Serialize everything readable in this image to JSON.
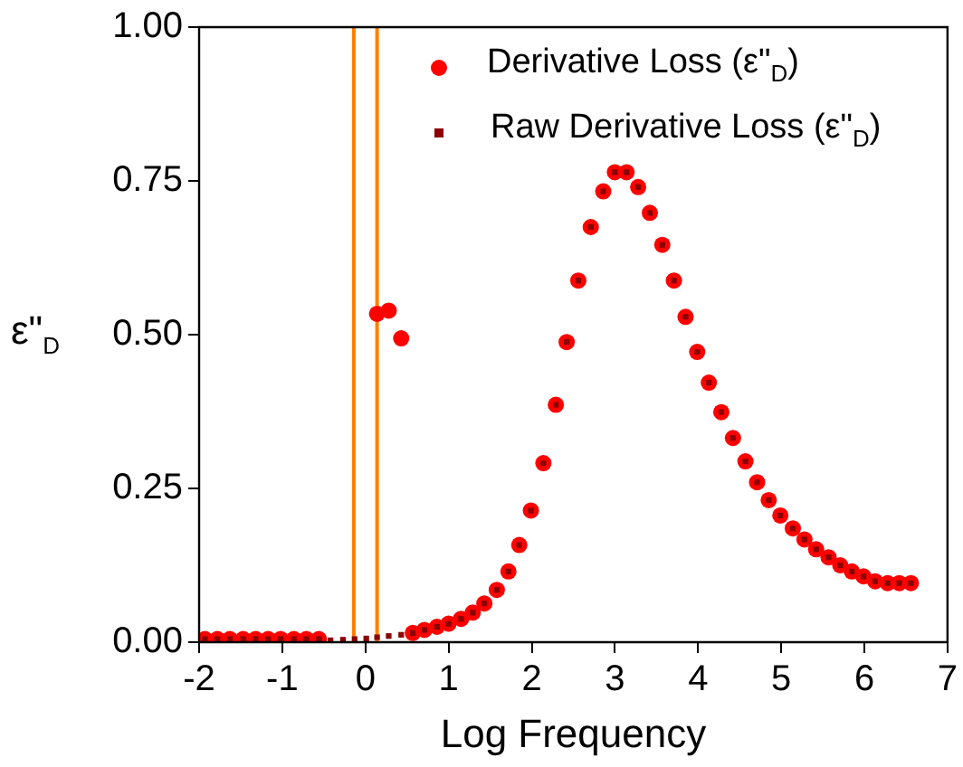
{
  "chart_data": {
    "type": "scatter",
    "xlabel": "Log Frequency",
    "ylabel": "ε\"$_{D}$",
    "xlim": [
      -2,
      7
    ],
    "xticks": [
      -2,
      -1,
      0,
      1,
      2,
      3,
      4,
      5,
      6,
      7
    ],
    "ylim": [
      0,
      1
    ],
    "yticks": [
      {
        "value": 0,
        "label": "0.00"
      },
      {
        "value": 0.25,
        "label": "0.25"
      },
      {
        "value": 0.5,
        "label": "0.50"
      },
      {
        "value": 0.75,
        "label": "0.75"
      },
      {
        "value": 1,
        "label": "1.00"
      }
    ],
    "grid": false,
    "legend": "top right",
    "ref_lines": [
      {
        "axis": "x",
        "value": -0.14,
        "color": "#ff8000"
      },
      {
        "axis": "x",
        "value": 0.14,
        "color": "#ff8000"
      }
    ],
    "series": [
      {
        "name": "Derivative Loss (ε\"$_{D}$)",
        "color": "#ff0000",
        "marker": "circle",
        "x": [
          -1.93,
          -1.78,
          -1.63,
          -1.47,
          -1.32,
          -1.17,
          -1.02,
          -0.86,
          -0.71,
          -0.56,
          0.14,
          0.28,
          0.43,
          0.57,
          0.71,
          0.86,
          1.0,
          1.15,
          1.29,
          1.43,
          1.58,
          1.72,
          1.85,
          1.99,
          2.14,
          2.29,
          2.42,
          2.56,
          2.71,
          2.86,
          3.0,
          3.14,
          3.28,
          3.42,
          3.57,
          3.71,
          3.85,
          3.99,
          4.13,
          4.28,
          4.42,
          4.57,
          4.71,
          4.85,
          4.99,
          5.14,
          5.28,
          5.42,
          5.57,
          5.71,
          5.85,
          5.99,
          6.13,
          6.28,
          6.42,
          6.56
        ],
        "values": [
          0.005,
          0.005,
          0.005,
          0.005,
          0.005,
          0.005,
          0.005,
          0.005,
          0.005,
          0.005,
          0.534,
          0.539,
          0.494,
          0.015,
          0.02,
          0.025,
          0.03,
          0.038,
          0.048,
          0.063,
          0.085,
          0.115,
          0.158,
          0.214,
          0.291,
          0.386,
          0.488,
          0.588,
          0.675,
          0.733,
          0.764,
          0.764,
          0.74,
          0.698,
          0.646,
          0.588,
          0.529,
          0.472,
          0.422,
          0.374,
          0.332,
          0.294,
          0.26,
          0.231,
          0.206,
          0.185,
          0.167,
          0.151,
          0.138,
          0.125,
          0.115,
          0.107,
          0.099,
          0.096,
          0.096,
          0.096
        ]
      },
      {
        "name": "Raw Derivative Loss (ε\"$_{D}$)",
        "color": "#8b0000",
        "marker": "square",
        "x": [
          -1.93,
          -1.78,
          -1.63,
          -1.47,
          -1.32,
          -1.17,
          -1.02,
          -0.86,
          -0.71,
          -0.56,
          -0.42,
          -0.27,
          -0.13,
          0.01,
          0.14,
          0.28,
          0.43,
          0.57,
          0.71,
          0.86,
          1.0,
          1.15,
          1.29,
          1.43,
          1.58,
          1.72,
          1.85,
          1.99,
          2.14,
          2.29,
          2.42,
          2.56,
          2.71,
          2.86,
          3.0,
          3.14,
          3.28,
          3.42,
          3.57,
          3.71,
          3.85,
          3.99,
          4.13,
          4.28,
          4.42,
          4.57,
          4.71,
          4.85,
          4.99,
          5.14,
          5.28,
          5.42,
          5.57,
          5.71,
          5.85,
          5.99,
          6.13,
          6.28,
          6.42,
          6.56
        ],
        "values": [
          0.005,
          0.005,
          0.005,
          0.005,
          0.005,
          0.005,
          0.005,
          0.005,
          0.005,
          0.005,
          0.003,
          0.004,
          0.005,
          0.006,
          0.008,
          0.01,
          0.012,
          0.015,
          0.02,
          0.025,
          0.03,
          0.038,
          0.048,
          0.063,
          0.085,
          0.115,
          0.158,
          0.214,
          0.291,
          0.386,
          0.488,
          0.588,
          0.675,
          0.733,
          0.764,
          0.764,
          0.74,
          0.698,
          0.646,
          0.588,
          0.529,
          0.472,
          0.422,
          0.374,
          0.332,
          0.294,
          0.26,
          0.231,
          0.206,
          0.185,
          0.167,
          0.151,
          0.138,
          0.125,
          0.115,
          0.107,
          0.099,
          0.096,
          0.096,
          0.096
        ]
      }
    ]
  }
}
